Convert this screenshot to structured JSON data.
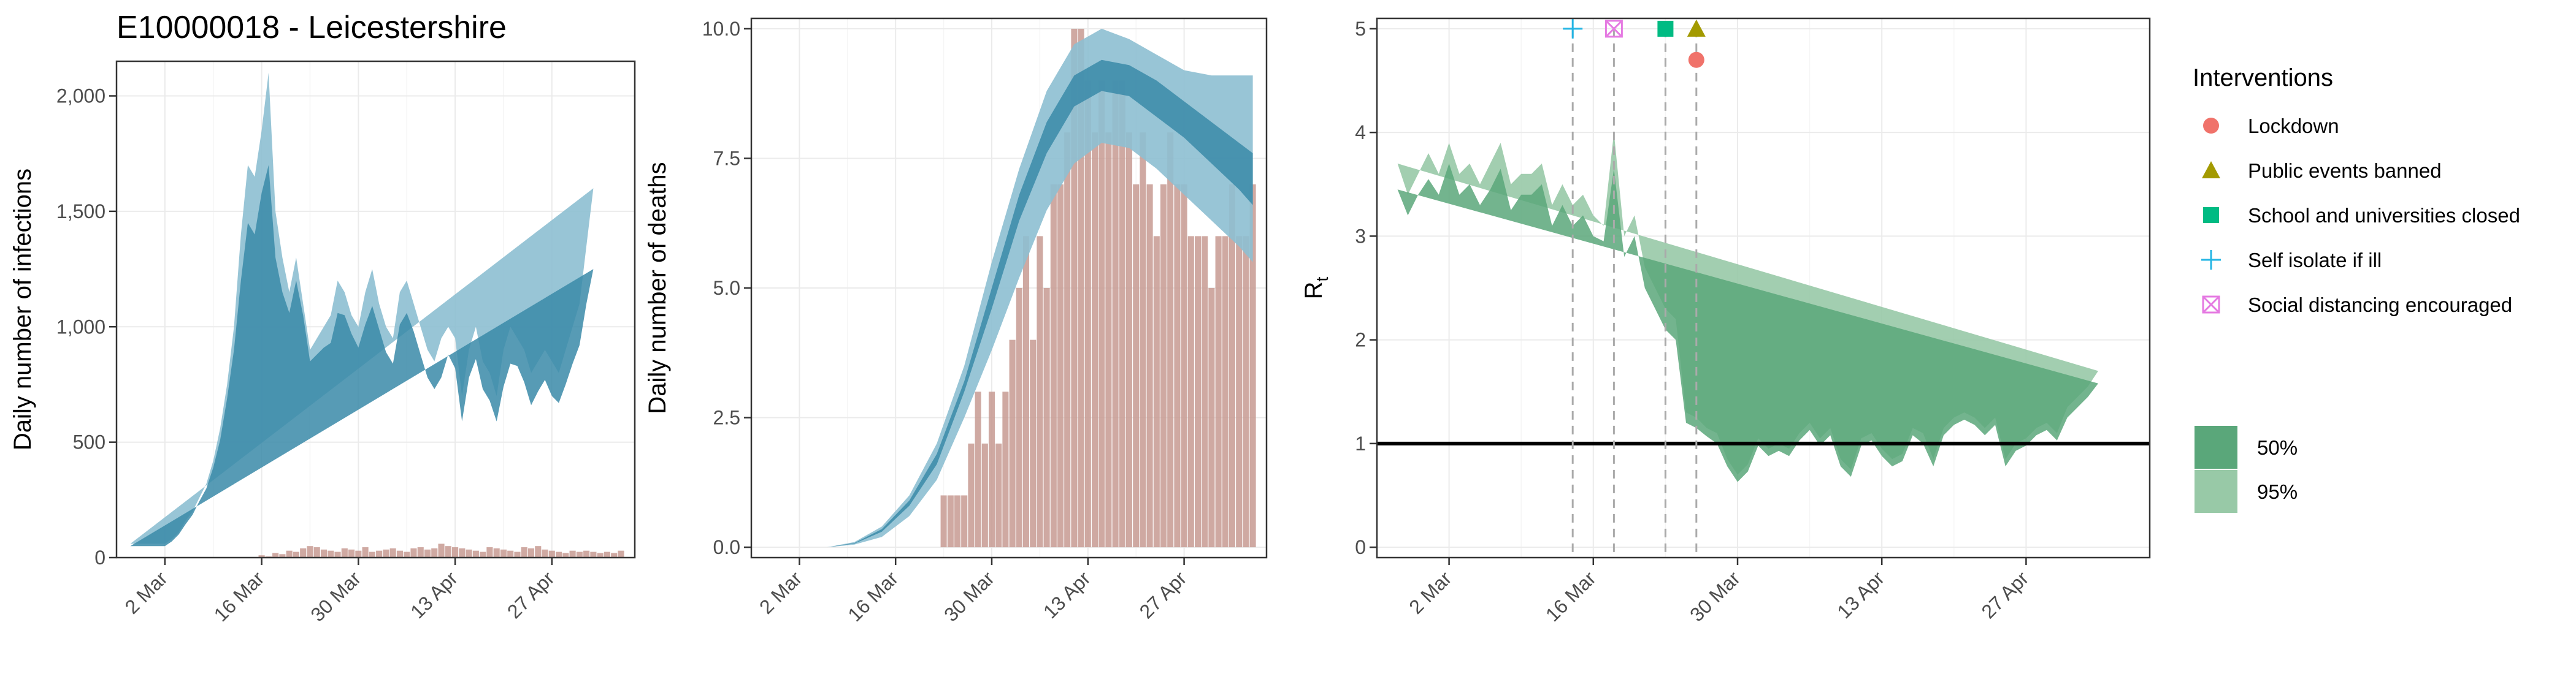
{
  "figure": {
    "title": "E10000018 - Leicestershire",
    "colors": {
      "infection_ci95": "#8dbfd1",
      "infection_ci50": "#3a8aa8",
      "bars": "#c79a92",
      "rt_ci95": "#98c9a7",
      "rt_ci50": "#5aa77a",
      "lockdown": "#f0726a",
      "public_events": "#a39a00",
      "schools": "#00bb83",
      "self_isolate": "#24b5e4",
      "social_distancing": "#e57ae2"
    }
  },
  "chart_data": [
    {
      "id": "infections",
      "type": "area",
      "title": "E10000018 - Leicestershire",
      "ylabel": "Daily number of infections",
      "xlabel": "",
      "x_ticks": [
        "2 Mar",
        "16 Mar",
        "30 Mar",
        "13 Apr",
        "27 Apr"
      ],
      "y_ticks": [
        "0",
        "500",
        "1,000",
        "1,500",
        "2,000"
      ],
      "ylim": [
        0,
        2150
      ],
      "xlim_days": [
        -7,
        68
      ],
      "x_days": [
        -5,
        -4,
        -3,
        -2,
        -1,
        0,
        1,
        2,
        3,
        4,
        5,
        6,
        7,
        8,
        9,
        10,
        11,
        12,
        13,
        14,
        15,
        16,
        17,
        18,
        19,
        20,
        21,
        22,
        23,
        24,
        25,
        26,
        27,
        28,
        29,
        30,
        31,
        32,
        33,
        34,
        35,
        36,
        37,
        38,
        39,
        40,
        41,
        42,
        43,
        44,
        45,
        46,
        47,
        48,
        49,
        50,
        51,
        52,
        53,
        54,
        55,
        56,
        57,
        58,
        59,
        60,
        61,
        62,
        63,
        64,
        65,
        66
      ],
      "series": [
        {
          "name": "95%",
          "lower": [
            25,
            25,
            25,
            25,
            25,
            25,
            40,
            60,
            90,
            120,
            170,
            210,
            280,
            360,
            480,
            600,
            800,
            900,
            1050,
            1100,
            1000,
            850,
            800,
            750,
            900,
            850,
            700,
            650,
            620,
            600,
            700,
            750,
            680,
            620,
            650,
            700,
            680,
            600,
            550,
            650,
            700,
            650,
            550,
            450,
            400,
            350,
            550,
            450,
            300,
            450,
            500,
            400,
            350,
            300,
            380,
            450,
            500,
            400,
            300,
            350,
            400,
            330,
            300,
            350,
            400,
            420,
            450,
            500
          ],
          "upper": [
            60,
            60,
            60,
            60,
            60,
            60,
            80,
            110,
            160,
            200,
            260,
            320,
            420,
            560,
            750,
            1000,
            1400,
            1700,
            1650,
            1850,
            2100,
            1500,
            1300,
            1150,
            1300,
            1100,
            900,
            950,
            1000,
            1050,
            1200,
            1150,
            1050,
            1000,
            1150,
            1250,
            1100,
            1000,
            950,
            1150,
            1200,
            1100,
            1000,
            900,
            850,
            950,
            1000,
            950,
            700,
            900,
            1000,
            850,
            800,
            700,
            900,
            1000,
            950,
            900,
            800,
            850,
            900,
            850,
            800,
            900,
            1000,
            1100,
            1350,
            1600
          ]
        },
        {
          "name": "50%",
          "lower": [
            40,
            40,
            40,
            40,
            40,
            40,
            60,
            85,
            125,
            160,
            215,
            270,
            345,
            450,
            610,
            780,
            1050,
            1250,
            1280,
            1400,
            1450,
            1100,
            1000,
            930,
            1050,
            950,
            780,
            780,
            790,
            800,
            920,
            920,
            850,
            800,
            880,
            950,
            870,
            780,
            730,
            880,
            930,
            860,
            760,
            650,
            600,
            620,
            750,
            680,
            480,
            650,
            720,
            600,
            550,
            480,
            600,
            700,
            700,
            620,
            520,
            580,
            630,
            560,
            530,
            600,
            680,
            740,
            850,
            970
          ],
          "upper": [
            50,
            50,
            50,
            50,
            50,
            50,
            70,
            100,
            145,
            185,
            245,
            300,
            390,
            510,
            690,
            900,
            1200,
            1450,
            1400,
            1580,
            1700,
            1300,
            1150,
            1060,
            1200,
            1050,
            850,
            880,
            910,
            930,
            1060,
            1050,
            970,
            910,
            1010,
            1090,
            990,
            890,
            840,
            1010,
            1060,
            980,
            880,
            780,
            730,
            780,
            880,
            820,
            590,
            780,
            860,
            730,
            680,
            590,
            740,
            840,
            830,
            760,
            660,
            720,
            770,
            700,
            670,
            750,
            840,
            920,
            1100,
            1250
          ]
        }
      ],
      "bars": {
        "x_days": [
          14,
          15,
          16,
          17,
          18,
          19,
          20,
          21,
          22,
          23,
          24,
          25,
          26,
          27,
          28,
          29,
          30,
          31,
          32,
          33,
          34,
          35,
          36,
          37,
          38,
          39,
          40,
          41,
          42,
          43,
          44,
          45,
          46,
          47,
          48,
          49,
          50,
          51,
          52,
          53,
          54,
          55,
          56,
          57,
          58,
          59,
          60,
          61,
          62,
          63,
          64,
          65,
          66
        ],
        "values": [
          10,
          5,
          20,
          15,
          30,
          25,
          40,
          50,
          45,
          35,
          30,
          25,
          40,
          35,
          30,
          45,
          25,
          30,
          35,
          40,
          30,
          25,
          40,
          45,
          35,
          40,
          60,
          50,
          45,
          40,
          35,
          30,
          25,
          45,
          40,
          35,
          30,
          25,
          45,
          40,
          50,
          35,
          30,
          25,
          20,
          30,
          25,
          30,
          25,
          20,
          25,
          20,
          30
        ]
      }
    },
    {
      "id": "deaths",
      "type": "area",
      "title": "",
      "ylabel": "Daily number of deaths",
      "xlabel": "",
      "x_ticks": [
        "2 Mar",
        "16 Mar",
        "30 Mar",
        "13 Apr",
        "27 Apr"
      ],
      "y_ticks": [
        "0.0",
        "2.5",
        "5.0",
        "7.5",
        "10.0"
      ],
      "ylim": [
        -0.2,
        10.2
      ],
      "xlim_days": [
        -7,
        68
      ],
      "x_days": [
        0,
        4,
        8,
        12,
        16,
        20,
        24,
        28,
        32,
        36,
        40,
        44,
        48,
        52,
        56,
        60,
        64,
        66
      ],
      "series": [
        {
          "name": "95%",
          "lower": [
            0,
            0,
            0.05,
            0.2,
            0.6,
            1.3,
            2.5,
            3.8,
            5.2,
            6.5,
            7.4,
            7.8,
            7.7,
            7.3,
            6.8,
            6.3,
            5.8,
            5.5
          ],
          "upper": [
            0,
            0,
            0.1,
            0.4,
            1.0,
            2.0,
            3.5,
            5.5,
            7.3,
            8.8,
            9.7,
            10.0,
            9.8,
            9.5,
            9.2,
            9.1,
            9.1,
            9.1
          ]
        },
        {
          "name": "50%",
          "lower": [
            0,
            0,
            0.07,
            0.3,
            0.8,
            1.6,
            3.0,
            4.6,
            6.3,
            7.6,
            8.5,
            8.8,
            8.7,
            8.3,
            7.9,
            7.4,
            6.9,
            6.6
          ],
          "upper": [
            0,
            0,
            0.08,
            0.35,
            0.9,
            1.8,
            3.2,
            5.0,
            6.8,
            8.2,
            9.1,
            9.4,
            9.3,
            9.0,
            8.6,
            8.2,
            7.8,
            7.6
          ]
        }
      ],
      "bars": {
        "x_days": [
          21,
          22,
          23,
          24,
          25,
          26,
          27,
          28,
          29,
          30,
          31,
          32,
          33,
          34,
          35,
          36,
          37,
          38,
          39,
          40,
          41,
          42,
          43,
          44,
          45,
          46,
          47,
          48,
          49,
          50,
          51,
          52,
          53,
          54,
          55,
          56,
          57,
          58,
          59,
          60,
          61,
          62,
          63,
          64,
          65,
          66
        ],
        "values": [
          1,
          1,
          1,
          1,
          2,
          3,
          2,
          3,
          2,
          3,
          4,
          5,
          6,
          4,
          6,
          5,
          7,
          7,
          8,
          10,
          10,
          9,
          8,
          9,
          8,
          9,
          9,
          8,
          7,
          8,
          7,
          6,
          7,
          8,
          7,
          7,
          6,
          6,
          6,
          5,
          6,
          6,
          7,
          6,
          6,
          7
        ]
      }
    },
    {
      "id": "rt",
      "type": "area",
      "title": "",
      "ylabel": "R",
      "ylabel_sub": "t",
      "xlabel": "",
      "x_ticks": [
        "2 Mar",
        "16 Mar",
        "30 Mar",
        "13 Apr",
        "27 Apr"
      ],
      "y_ticks": [
        "0",
        "1",
        "2",
        "3",
        "4",
        "5"
      ],
      "ylim": [
        -0.1,
        5.1
      ],
      "xlim_days": [
        -7,
        68
      ],
      "reference_line": 1,
      "x_days": [
        -5,
        -4,
        -3,
        -2,
        -1,
        0,
        1,
        2,
        3,
        4,
        5,
        6,
        7,
        8,
        9,
        10,
        11,
        12,
        13,
        14,
        15,
        16,
        17,
        18,
        19,
        20,
        21,
        22,
        23,
        24,
        25,
        26,
        27,
        28,
        29,
        30,
        31,
        32,
        33,
        34,
        35,
        36,
        37,
        38,
        39,
        40,
        41,
        42,
        43,
        44,
        45,
        46,
        47,
        48,
        49,
        50,
        51,
        52,
        53,
        54,
        55,
        56,
        57,
        58,
        59,
        60,
        61,
        62,
        63,
        64,
        65,
        66
      ],
      "series": [
        {
          "name": "95%",
          "lower": [
            3.0,
            2.8,
            3.0,
            3.1,
            3.0,
            3.3,
            3.0,
            3.1,
            2.9,
            3.0,
            3.2,
            2.8,
            3.0,
            3.0,
            3.1,
            2.7,
            2.9,
            2.7,
            2.8,
            2.6,
            2.6,
            3.0,
            2.4,
            2.6,
            2.2,
            2.0,
            1.8,
            1.7,
            1.0,
            0.95,
            0.9,
            0.8,
            0.6,
            0.45,
            0.55,
            0.8,
            0.7,
            0.75,
            0.7,
            0.85,
            0.95,
            0.8,
            0.9,
            0.6,
            0.5,
            0.8,
            0.85,
            0.7,
            0.6,
            0.65,
            0.9,
            0.8,
            0.6,
            0.9,
            1.0,
            1.05,
            1.0,
            0.9,
            1.0,
            0.6,
            0.75,
            0.8,
            0.9,
            0.95,
            0.85,
            1.05,
            1.15,
            1.25,
            1.35
          ],
          "upper": [
            3.7,
            3.4,
            3.6,
            3.8,
            3.6,
            3.9,
            3.6,
            3.7,
            3.5,
            3.7,
            3.9,
            3.5,
            3.6,
            3.6,
            3.7,
            3.3,
            3.5,
            3.3,
            3.4,
            3.2,
            3.1,
            4.0,
            3.0,
            3.2,
            2.7,
            2.5,
            2.3,
            2.2,
            1.3,
            1.25,
            1.15,
            1.1,
            0.85,
            0.7,
            0.8,
            1.05,
            0.95,
            1.0,
            0.95,
            1.1,
            1.2,
            1.05,
            1.15,
            0.85,
            0.75,
            1.05,
            1.1,
            0.95,
            0.85,
            0.9,
            1.15,
            1.1,
            0.85,
            1.15,
            1.25,
            1.3,
            1.25,
            1.15,
            1.25,
            0.85,
            1.0,
            1.05,
            1.15,
            1.2,
            1.1,
            1.35,
            1.45,
            1.55,
            1.7
          ]
        },
        {
          "name": "50%",
          "lower": [
            3.2,
            3.0,
            3.2,
            3.3,
            3.2,
            3.5,
            3.2,
            3.3,
            3.1,
            3.2,
            3.4,
            3.0,
            3.2,
            3.2,
            3.3,
            2.9,
            3.1,
            2.9,
            3.0,
            2.8,
            2.8,
            3.3,
            2.6,
            2.8,
            2.35,
            2.15,
            1.95,
            1.85,
            1.08,
            1.02,
            0.97,
            0.88,
            0.67,
            0.52,
            0.62,
            0.87,
            0.77,
            0.82,
            0.77,
            0.92,
            1.02,
            0.87,
            0.97,
            0.67,
            0.57,
            0.87,
            0.92,
            0.77,
            0.67,
            0.72,
            0.97,
            0.88,
            0.67,
            0.97,
            1.07,
            1.12,
            1.07,
            0.97,
            1.07,
            0.67,
            0.82,
            0.87,
            0.97,
            1.02,
            0.92,
            1.12,
            1.22,
            1.32,
            1.44
          ],
          "upper": [
            3.45,
            3.2,
            3.4,
            3.55,
            3.4,
            3.7,
            3.4,
            3.5,
            3.3,
            3.45,
            3.65,
            3.25,
            3.4,
            3.4,
            3.5,
            3.1,
            3.3,
            3.1,
            3.2,
            3.0,
            2.95,
            3.65,
            2.8,
            3.0,
            2.5,
            2.3,
            2.1,
            2.0,
            1.2,
            1.15,
            1.07,
            1.0,
            0.78,
            0.63,
            0.73,
            0.98,
            0.88,
            0.93,
            0.88,
            1.03,
            1.13,
            0.98,
            1.08,
            0.78,
            0.68,
            0.98,
            1.03,
            0.88,
            0.78,
            0.83,
            1.08,
            1.0,
            0.78,
            1.08,
            1.18,
            1.23,
            1.18,
            1.08,
            1.18,
            0.78,
            0.93,
            0.98,
            1.08,
            1.13,
            1.03,
            1.25,
            1.35,
            1.45,
            1.58
          ]
        }
      ],
      "interventions": [
        {
          "name": "Self isolate if ill",
          "day": 12,
          "y": 5.0,
          "shape": "plus",
          "color": "#24b5e4"
        },
        {
          "name": "Social distancing encouraged",
          "day": 16,
          "y": 5.0,
          "shape": "boxx",
          "color": "#e57ae2"
        },
        {
          "name": "School and universities closed",
          "day": 21,
          "y": 5.0,
          "shape": "square",
          "color": "#00bb83"
        },
        {
          "name": "Public events banned",
          "day": 24,
          "y": 5.0,
          "shape": "triangle",
          "color": "#a39a00"
        },
        {
          "name": "Lockdown",
          "day": 24,
          "y": 4.7,
          "shape": "circle",
          "color": "#f0726a"
        }
      ]
    }
  ],
  "legend": {
    "title": "Interventions",
    "items": [
      {
        "label": "Lockdown",
        "shape": "circle",
        "color": "#f0726a"
      },
      {
        "label": "Public events banned",
        "shape": "triangle",
        "color": "#a39a00"
      },
      {
        "label": "School and universities closed",
        "shape": "square",
        "color": "#00bb83"
      },
      {
        "label": "Self isolate if ill",
        "shape": "plus",
        "color": "#24b5e4"
      },
      {
        "label": "Social distancing encouraged",
        "shape": "boxx",
        "color": "#e57ae2"
      }
    ],
    "ci_items": [
      {
        "label": "50%",
        "color": "#5aa77a"
      },
      {
        "label": "95%",
        "color": "#98c9a7"
      }
    ]
  }
}
